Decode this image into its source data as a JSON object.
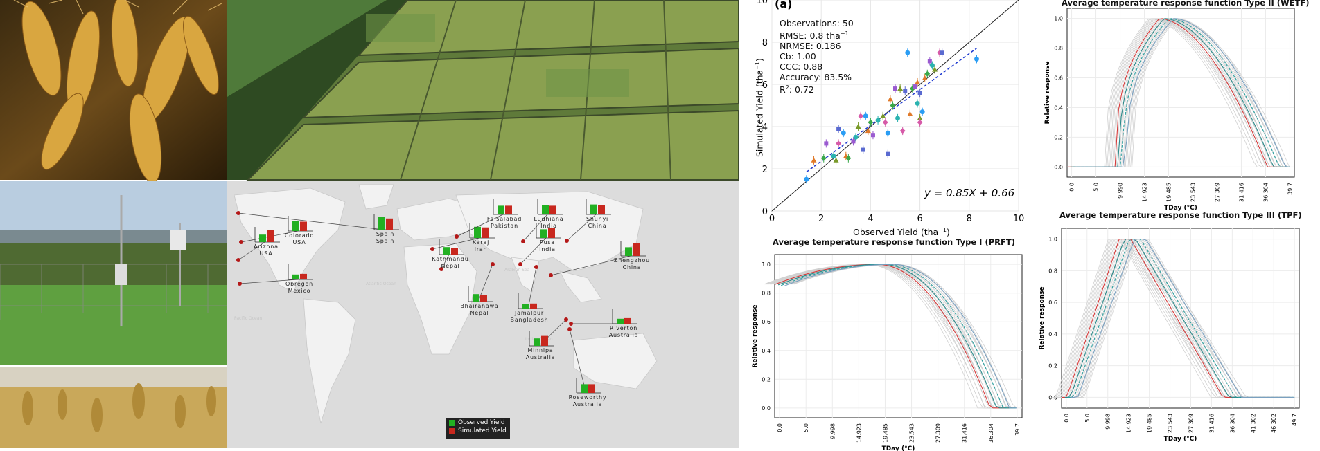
{
  "photos": {
    "wheat_closeup": "wheat closeup",
    "aerial_plots": "aerial plots",
    "weather_station": "weather station",
    "wheat_field": "wheat field"
  },
  "map": {
    "sites": [
      {
        "name": "Colorado",
        "country": "USA",
        "obs": 0.8,
        "sim": 0.75
      },
      {
        "name": "Arizona",
        "country": "USA",
        "obs": 0.6,
        "sim": 0.95
      },
      {
        "name": "Obregon",
        "country": "Mexico",
        "obs": 0.4,
        "sim": 0.45
      },
      {
        "name": "Spain",
        "country": "Spain",
        "obs": 1.0,
        "sim": 0.9
      },
      {
        "name": "Karaj",
        "country": "Iran",
        "obs": 0.9,
        "sim": 0.85
      },
      {
        "name": "Faisalabad",
        "country": "Pakistan",
        "obs": 0.7,
        "sim": 0.7
      },
      {
        "name": "Ludhiana",
        "country": "India",
        "obs": 0.75,
        "sim": 0.7
      },
      {
        "name": "Shunyi",
        "country": "China",
        "obs": 0.8,
        "sim": 0.75
      },
      {
        "name": "Pusa",
        "country": "India",
        "obs": 0.7,
        "sim": 0.8
      },
      {
        "name": "Kathmandu",
        "country": "Nepal",
        "obs": 0.6,
        "sim": 0.55
      },
      {
        "name": "Zhengzhou",
        "country": "China",
        "obs": 0.7,
        "sim": 1.0
      },
      {
        "name": "Bhairahawa",
        "country": "Nepal",
        "obs": 0.6,
        "sim": 0.55
      },
      {
        "name": "Jamalpur",
        "country": "Bangladesh",
        "obs": 0.35,
        "sim": 0.4
      },
      {
        "name": "Minnipa",
        "country": "Australia",
        "obs": 0.6,
        "sim": 0.8
      },
      {
        "name": "Riverton",
        "country": "Australia",
        "obs": 0.4,
        "sim": 0.45
      },
      {
        "name": "Roseworthy",
        "country": "Australia",
        "obs": 0.7,
        "sim": 0.7
      }
    ],
    "legend": {
      "observed": "Observed Yield",
      "simulated": "Simulated Yield"
    },
    "ocean_labels": [
      "Pacific Ocean",
      "Atlantic Ocean",
      "Indian Ocean",
      "Arabian Sea"
    ],
    "colors": {
      "observed": "#22b022",
      "simulated": "#c8281e",
      "marker": "#b41818"
    }
  },
  "scatter": {
    "panel_label": "(a)",
    "stats": [
      "Observations: 50",
      "RMSE: 0.8 tha",
      "NRMSE: 0.186",
      "Cb: 1.00",
      "CCC: 0.88",
      "Accuracy: 83.5%",
      "R",
      "0.72"
    ],
    "equation": "y = 0.85X + 0.66",
    "ylabel": "Simulated Yield (tha",
    "xlabel": "Observed Yield (tha",
    "unit_exp": "−1",
    "xticks": [
      "0",
      "2",
      "4",
      "6",
      "8",
      "10"
    ],
    "yticks": [
      "0",
      "2",
      "4",
      "6",
      "8",
      "10"
    ]
  },
  "chart_data": [
    {
      "type": "scatter",
      "title": "(a)",
      "xlabel": "Observed Yield (tha−1)",
      "ylabel": "Simulated Yield (tha−1)",
      "xlim": [
        0,
        10
      ],
      "ylim": [
        0,
        10
      ],
      "fit": {
        "slope": 0.85,
        "intercept": 0.66
      },
      "points": [
        [
          1.4,
          1.5
        ],
        [
          1.7,
          2.4
        ],
        [
          2.1,
          2.5
        ],
        [
          2.2,
          3.2
        ],
        [
          2.5,
          2.6
        ],
        [
          2.6,
          2.4
        ],
        [
          2.7,
          3.2
        ],
        [
          2.7,
          3.9
        ],
        [
          2.9,
          3.7
        ],
        [
          3.0,
          2.6
        ],
        [
          3.1,
          2.5
        ],
        [
          3.3,
          3.3
        ],
        [
          3.4,
          3.5
        ],
        [
          3.5,
          4.0
        ],
        [
          3.6,
          4.5
        ],
        [
          3.7,
          2.9
        ],
        [
          3.8,
          4.5
        ],
        [
          3.9,
          3.8
        ],
        [
          4.0,
          4.2
        ],
        [
          4.1,
          3.6
        ],
        [
          4.3,
          4.3
        ],
        [
          4.5,
          4.5
        ],
        [
          4.6,
          4.2
        ],
        [
          4.7,
          2.7
        ],
        [
          4.7,
          3.7
        ],
        [
          4.8,
          5.3
        ],
        [
          4.9,
          5.0
        ],
        [
          5.0,
          5.8
        ],
        [
          5.1,
          4.4
        ],
        [
          5.2,
          5.8
        ],
        [
          5.3,
          3.8
        ],
        [
          5.4,
          5.7
        ],
        [
          5.5,
          7.5
        ],
        [
          5.6,
          4.6
        ],
        [
          5.7,
          5.8
        ],
        [
          5.8,
          5.9
        ],
        [
          5.9,
          5.1
        ],
        [
          6.0,
          4.4
        ],
        [
          6.0,
          4.2
        ],
        [
          6.0,
          5.6
        ],
        [
          6.1,
          4.7
        ],
        [
          6.2,
          6.3
        ],
        [
          6.3,
          6.5
        ],
        [
          6.4,
          7.1
        ],
        [
          6.5,
          6.9
        ],
        [
          6.6,
          6.7
        ],
        [
          6.8,
          7.5
        ],
        [
          6.9,
          7.5
        ],
        [
          8.3,
          7.2
        ],
        [
          5.9,
          6.1
        ]
      ]
    },
    {
      "type": "line",
      "title": "Average temperature response function Type II (WETF)",
      "xlabel": "TDay (°C)",
      "ylabel": "Relative response",
      "xticks": [
        "0.0",
        "5.0",
        "9.998",
        "14.923",
        "19.485",
        "23.543",
        "27.309",
        "31.416",
        "36.304",
        "39.7"
      ],
      "yticks": [
        "0.0",
        "0.2",
        "0.4",
        "0.6",
        "0.8",
        "1.0"
      ],
      "ylim": [
        0,
        1
      ]
    },
    {
      "type": "line",
      "title": "Average temperature response function Type I (PRFT)",
      "xlabel": "TDay (°C)",
      "ylabel": "Relative response",
      "xticks": [
        "0.0",
        "5.0",
        "9.998",
        "14.923",
        "19.485",
        "23.543",
        "27.309",
        "31.416",
        "36.304",
        "39.7"
      ],
      "yticks": [
        "0.0",
        "0.2",
        "0.4",
        "0.6",
        "0.8",
        "1.0"
      ],
      "ylim": [
        0,
        1
      ]
    },
    {
      "type": "line",
      "title": "Average temperature response function Type III (TPF)",
      "xlabel": "TDay (°C)",
      "ylabel": "Relative response",
      "xticks": [
        "0.0",
        "5.0",
        "9.998",
        "14.923",
        "19.485",
        "23.543",
        "27.309",
        "31.416",
        "36.304",
        "41.302",
        "46.302",
        "49.7"
      ],
      "yticks": [
        "0.0",
        "0.2",
        "0.4",
        "0.6",
        "0.8",
        "1.0"
      ],
      "ylim": [
        0,
        1
      ]
    }
  ]
}
